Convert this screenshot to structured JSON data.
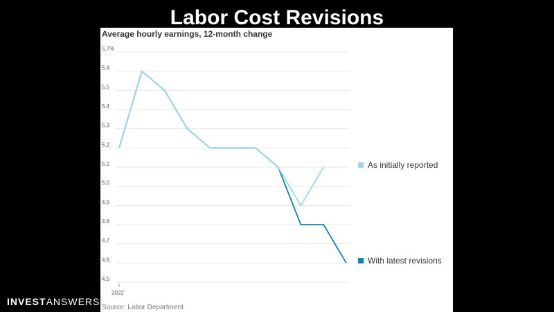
{
  "slide": {
    "title": "Labor Cost Revisions"
  },
  "brand": {
    "bold": "INVEST",
    "light": "ANSWERS"
  },
  "chart_data": {
    "type": "line",
    "title": "Average hourly earnings, 12-month change",
    "source": "Source: Labor Department",
    "x_tick_labels": [
      "2022"
    ],
    "y_tick_labels": [
      "5.7%",
      "5.6",
      "5.5",
      "5.4",
      "5.3",
      "5.2",
      "5.1",
      "5.0",
      "4.9",
      "4.8",
      "4.7",
      "4.6",
      "4.5"
    ],
    "ylim": [
      4.5,
      5.7
    ],
    "grid": true,
    "legend_position": "right",
    "x": [
      0,
      1,
      2,
      3,
      4,
      5,
      6,
      7,
      8,
      9,
      10
    ],
    "series": [
      {
        "name": "As initially reported",
        "color": "#9fd4ec",
        "values": [
          5.2,
          5.6,
          5.5,
          5.3,
          5.2,
          5.2,
          5.2,
          5.1,
          4.9,
          5.1,
          null
        ]
      },
      {
        "name": "With latest revisions",
        "color": "#0b86b4",
        "values": [
          5.2,
          5.6,
          5.5,
          5.3,
          5.2,
          5.2,
          5.2,
          5.1,
          4.8,
          4.8,
          4.6
        ]
      }
    ]
  }
}
